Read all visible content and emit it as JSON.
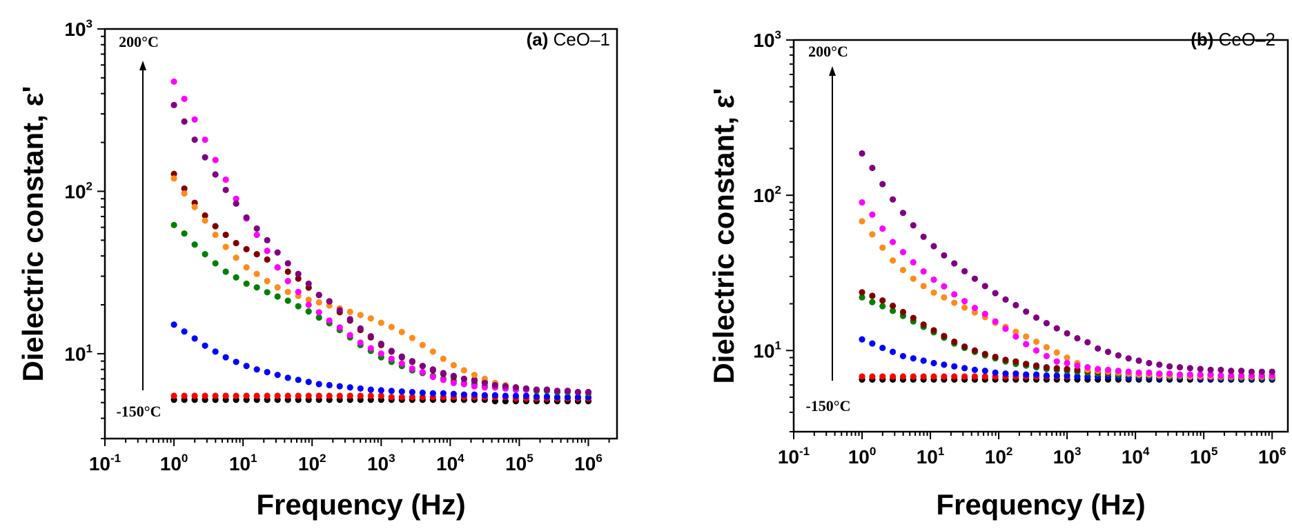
{
  "chart_data": [
    {
      "type": "scatter",
      "panel": "a",
      "title_bold": "(a)",
      "title": "CeO–1",
      "xlabel": "Frequency (Hz)",
      "ylabel": "Dielectric constant, ε'",
      "xscale": "log",
      "yscale": "log",
      "xlim": [
        0.1,
        2600000
      ],
      "ylim": [
        3,
        1000
      ],
      "x_tick_labels": [
        {
          "base": "10",
          "exp": "-1"
        },
        {
          "base": "10",
          "exp": "0"
        },
        {
          "base": "10",
          "exp": "1"
        },
        {
          "base": "10",
          "exp": "2"
        },
        {
          "base": "10",
          "exp": "3"
        },
        {
          "base": "10",
          "exp": "4"
        },
        {
          "base": "10",
          "exp": "5"
        },
        {
          "base": "10",
          "exp": "6"
        }
      ],
      "y_tick_labels": [
        {
          "base": "10",
          "exp": "1"
        },
        {
          "base": "10",
          "exp": "2"
        },
        {
          "base": "10",
          "exp": "3"
        }
      ],
      "annotations": {
        "arrow_top": "200°C",
        "arrow_bottom": "-150°C"
      },
      "x_log10_start": 0,
      "x_log10_step": 0.15,
      "n_points": 41,
      "series": [
        {
          "color": "#000000",
          "values": [
            5.2,
            5.2,
            5.2,
            5.2,
            5.2,
            5.2,
            5.2,
            5.2,
            5.2,
            5.2,
            5.2,
            5.2,
            5.2,
            5.2,
            5.2,
            5.2,
            5.2,
            5.2,
            5.2,
            5.2,
            5.2,
            5.2,
            5.2,
            5.2,
            5.2,
            5.2,
            5.2,
            5.2,
            5.2,
            5.2,
            5.2,
            5.1,
            5.1,
            5.1,
            5.1,
            5.1,
            5.1,
            5.1,
            5.1,
            5.1,
            5.1
          ]
        },
        {
          "color": "#ff0000",
          "values": [
            5.5,
            5.5,
            5.5,
            5.5,
            5.5,
            5.5,
            5.5,
            5.5,
            5.5,
            5.5,
            5.5,
            5.5,
            5.5,
            5.5,
            5.5,
            5.5,
            5.5,
            5.5,
            5.5,
            5.5,
            5.5,
            5.4,
            5.4,
            5.4,
            5.4,
            5.4,
            5.4,
            5.4,
            5.4,
            5.4,
            5.4,
            5.4,
            5.4,
            5.3,
            5.3,
            5.3,
            5.3,
            5.3,
            5.3,
            5.3,
            5.3
          ]
        },
        {
          "color": "#0000ff",
          "values": [
            15.1,
            13.7,
            12.4,
            11.2,
            10.3,
            9.5,
            8.9,
            8.4,
            8.0,
            7.7,
            7.4,
            7.1,
            6.9,
            6.7,
            6.5,
            6.4,
            6.3,
            6.2,
            6.1,
            6.0,
            5.95,
            5.9,
            5.85,
            5.8,
            5.75,
            5.7,
            5.7,
            5.65,
            5.6,
            5.6,
            5.55,
            5.55,
            5.5,
            5.5,
            5.5,
            5.45,
            5.45,
            5.4,
            5.4,
            5.4,
            5.4
          ]
        },
        {
          "color": "#008000",
          "values": [
            62,
            55,
            47,
            41,
            36,
            32,
            29.5,
            27,
            25.6,
            23.9,
            22.5,
            21.2,
            19.6,
            18.2,
            16.7,
            15.4,
            14,
            12.6,
            11.3,
            10.4,
            9.5,
            8.9,
            8.4,
            7.9,
            7.6,
            7.3,
            7.0,
            6.8,
            6.6,
            6.5,
            6.3,
            6.2,
            6.1,
            6.0,
            6.0,
            5.9,
            5.9,
            5.8,
            5.8,
            5.8,
            5.7
          ]
        },
        {
          "color": "#800000",
          "values": [
            128,
            104,
            85,
            71,
            61,
            54,
            48,
            44,
            41,
            38,
            34,
            32,
            29,
            25.5,
            23,
            21,
            18,
            16,
            14,
            12.6,
            11.3,
            10.3,
            9.5,
            8.9,
            8.4,
            7.9,
            7.5,
            7.2,
            7.0,
            6.9,
            6.7,
            6.5,
            6.3,
            6.2,
            6.1,
            6.0,
            6.0,
            5.9,
            5.9,
            5.8,
            5.8
          ]
        },
        {
          "color": "#ff8c1a",
          "values": [
            120,
            97,
            80,
            66,
            54,
            45.5,
            39,
            34,
            31,
            28,
            25.6,
            24,
            22.7,
            21.5,
            20.7,
            19.8,
            19,
            18.1,
            17.3,
            16.5,
            15.5,
            14.6,
            13.6,
            12.5,
            11.3,
            10.3,
            9.3,
            8.5,
            7.9,
            7.4,
            7.0,
            6.6,
            6.4,
            6.2,
            6.1,
            6.0,
            6.0,
            5.9,
            5.9,
            5.8,
            5.8
          ]
        },
        {
          "color": "#ff00ff",
          "values": [
            474,
            371,
            277,
            208,
            156,
            118,
            90,
            68,
            54,
            43,
            34,
            28,
            24,
            20,
            18,
            16,
            14.5,
            13,
            11.7,
            10.8,
            10,
            9.3,
            8.7,
            8.1,
            7.7,
            7.2,
            6.9,
            6.6,
            6.5,
            6.3,
            6.2,
            6.2,
            6.1,
            6.0,
            6.0,
            6.0,
            6.0,
            5.9,
            5.9,
            5.8,
            5.8
          ]
        },
        {
          "color": "#800080",
          "values": [
            340,
            269,
            208,
            162,
            127,
            102,
            84,
            69,
            59,
            50,
            42,
            36,
            31,
            27,
            23,
            21,
            18.5,
            16.3,
            14.3,
            12.8,
            11.5,
            10.4,
            9.6,
            9.0,
            8.4,
            8.0,
            7.6,
            7.3,
            7.0,
            6.8,
            6.6,
            6.4,
            6.3,
            6.2,
            6.1,
            6.0,
            6.0,
            5.9,
            5.9,
            5.8,
            5.8
          ]
        }
      ]
    },
    {
      "type": "scatter",
      "panel": "b",
      "title_bold": "(b)",
      "title": "CeO–2",
      "xlabel": "Frequency (Hz)",
      "ylabel": "Dielectric constant, ε'",
      "xscale": "log",
      "yscale": "log",
      "xlim": [
        0.1,
        1700000
      ],
      "ylim": [
        3,
        1000
      ],
      "x_tick_labels": [
        {
          "base": "10",
          "exp": "-1"
        },
        {
          "base": "10",
          "exp": "0"
        },
        {
          "base": "10",
          "exp": "1"
        },
        {
          "base": "10",
          "exp": "2"
        },
        {
          "base": "10",
          "exp": "3"
        },
        {
          "base": "10",
          "exp": "4"
        },
        {
          "base": "10",
          "exp": "5"
        },
        {
          "base": "10",
          "exp": "6"
        }
      ],
      "y_tick_labels": [
        {
          "base": "10",
          "exp": "1"
        },
        {
          "base": "10",
          "exp": "2"
        },
        {
          "base": "10",
          "exp": "3"
        }
      ],
      "annotations": {
        "arrow_top": "200°C",
        "arrow_bottom": "-150°C"
      },
      "x_log10_start": 0,
      "x_log10_step": 0.15,
      "n_points": 41,
      "series": [
        {
          "color": "#000000",
          "values": [
            6.5,
            6.5,
            6.5,
            6.5,
            6.5,
            6.5,
            6.5,
            6.5,
            6.5,
            6.5,
            6.5,
            6.5,
            6.5,
            6.5,
            6.5,
            6.5,
            6.5,
            6.5,
            6.5,
            6.5,
            6.5,
            6.5,
            6.5,
            6.5,
            6.5,
            6.5,
            6.5,
            6.5,
            6.5,
            6.5,
            6.5,
            6.5,
            6.5,
            6.5,
            6.5,
            6.5,
            6.5,
            6.5,
            6.5,
            6.5,
            6.5
          ]
        },
        {
          "color": "#ff0000",
          "values": [
            6.8,
            6.8,
            6.8,
            6.8,
            6.8,
            6.8,
            6.8,
            6.8,
            6.8,
            6.8,
            6.8,
            6.8,
            6.8,
            6.8,
            6.8,
            6.8,
            6.8,
            6.8,
            6.8,
            6.8,
            6.8,
            6.8,
            6.8,
            6.8,
            6.8,
            6.8,
            6.7,
            6.7,
            6.7,
            6.7,
            6.7,
            6.7,
            6.7,
            6.7,
            6.7,
            6.7,
            6.7,
            6.7,
            6.7,
            6.7,
            6.7
          ]
        },
        {
          "color": "#0000ff",
          "values": [
            11.8,
            11.1,
            10.4,
            9.8,
            9.2,
            8.9,
            8.6,
            8.3,
            8.1,
            7.9,
            7.7,
            7.5,
            7.4,
            7.2,
            7.1,
            7.1,
            7.0,
            7.0,
            6.9,
            6.9,
            6.9,
            6.8,
            6.8,
            6.8,
            6.8,
            6.8,
            6.7,
            6.7,
            6.7,
            6.7,
            6.7,
            6.7,
            6.7,
            6.6,
            6.6,
            6.6,
            6.6,
            6.6,
            6.6,
            6.6,
            6.6
          ]
        },
        {
          "color": "#008000",
          "values": [
            22,
            20.5,
            19.3,
            18,
            16.7,
            15.4,
            14.2,
            13.1,
            12.1,
            11.1,
            10.4,
            9.8,
            9.3,
            8.9,
            8.5,
            8.2,
            8.0,
            7.8,
            7.6,
            7.5,
            7.4,
            7.3,
            7.2,
            7.1,
            7.1,
            7.0,
            7.0,
            6.9,
            6.9,
            6.9,
            6.8,
            6.8,
            6.8,
            6.8,
            6.8,
            6.7,
            6.7,
            6.7,
            6.7,
            6.7,
            6.7
          ]
        },
        {
          "color": "#800000",
          "values": [
            23.7,
            22.5,
            21,
            19.4,
            17.7,
            16.2,
            14.7,
            13.5,
            12.4,
            11.4,
            10.6,
            10,
            9.5,
            9.1,
            8.7,
            8.5,
            8.2,
            8.0,
            7.8,
            7.7,
            7.6,
            7.5,
            7.4,
            7.3,
            7.2,
            7.2,
            7.1,
            7.1,
            7.0,
            7.0,
            7.0,
            6.9,
            6.9,
            6.9,
            6.9,
            6.9,
            6.8,
            6.8,
            6.8,
            6.8,
            6.8
          ]
        },
        {
          "color": "#ff8c1a",
          "values": [
            68,
            56,
            46,
            38,
            33,
            29,
            26,
            23.6,
            22,
            20.3,
            18.9,
            17.6,
            16.4,
            15.1,
            14.2,
            13.2,
            12.3,
            11.4,
            10.5,
            9.7,
            9.0,
            8.3,
            7.5,
            7.4,
            7.3,
            7.2,
            7.1,
            7.0,
            7.0,
            6.9,
            6.9,
            6.9,
            6.8,
            6.8,
            6.8,
            6.8,
            6.8,
            6.8,
            6.8,
            6.8,
            6.8
          ]
        },
        {
          "color": "#ff00ff",
          "values": [
            90,
            75,
            61,
            50,
            43,
            37,
            32.3,
            28.6,
            25.9,
            23,
            20.8,
            18.8,
            17.2,
            15.4,
            13.8,
            12.3,
            11,
            10,
            9.2,
            8.5,
            8.3,
            8.0,
            7.8,
            7.6,
            7.5,
            7.4,
            7.3,
            7.2,
            7.2,
            7.1,
            7.1,
            7.0,
            7.0,
            7.0,
            7.0,
            6.9,
            6.9,
            6.9,
            6.9,
            6.9,
            6.9
          ]
        },
        {
          "color": "#800080",
          "values": [
            186,
            150,
            118,
            94,
            77,
            64,
            54,
            47,
            41,
            36.4,
            32.4,
            29,
            26,
            23.4,
            21.3,
            19.6,
            17.8,
            16.3,
            15,
            13.9,
            12.9,
            12,
            11.3,
            10.3,
            9.8,
            9.3,
            8.9,
            8.6,
            8.3,
            8.1,
            7.9,
            7.8,
            7.7,
            7.6,
            7.5,
            7.5,
            7.4,
            7.4,
            7.3,
            7.3,
            7.3
          ]
        }
      ]
    }
  ]
}
